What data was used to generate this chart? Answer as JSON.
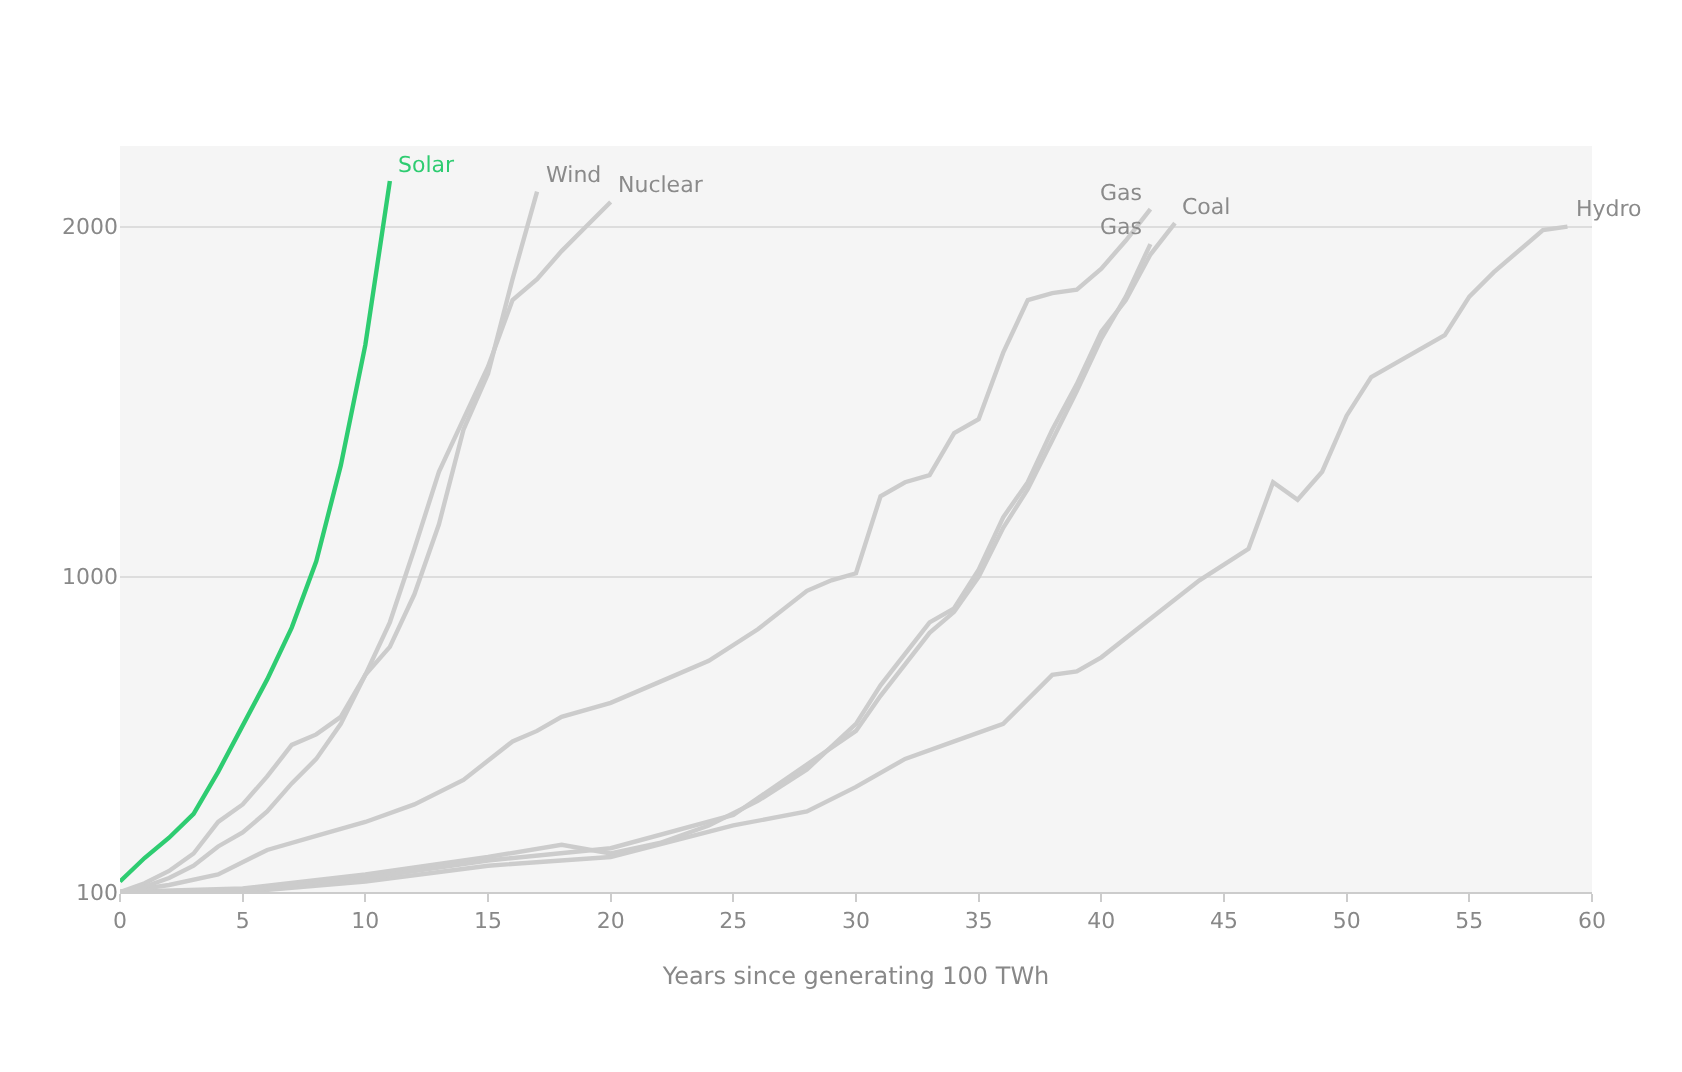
{
  "chart_data": {
    "type": "line",
    "xlabel": "Years since generating 100 TWh",
    "xlim": [
      0,
      60
    ],
    "xticks": [
      0,
      5,
      10,
      15,
      20,
      25,
      30,
      35,
      40,
      45,
      50,
      55,
      60
    ],
    "ylim": [
      100,
      2230
    ],
    "yticks": [
      100,
      1000,
      2000
    ],
    "grid": "y",
    "legend": false,
    "marker": "none",
    "line_style": "solid",
    "series": [
      {
        "name": "Hydro",
        "color": "#cccccc",
        "x": [
          0,
          5,
          10,
          15,
          20,
          25,
          28,
          30,
          32,
          34,
          36,
          38,
          39,
          40,
          42,
          44,
          46,
          47,
          48,
          49,
          50,
          51,
          52,
          54,
          55,
          56,
          58,
          59
        ],
        "values": [
          100,
          100,
          130,
          175,
          200,
          290,
          330,
          400,
          480,
          530,
          580,
          720,
          730,
          770,
          880,
          990,
          1080,
          1270,
          1220,
          1300,
          1460,
          1570,
          1610,
          1690,
          1800,
          1870,
          1990,
          2000
        ]
      },
      {
        "name": "Coal",
        "color": "#cccccc",
        "x": [
          0,
          5,
          10,
          15,
          18,
          20,
          22,
          24,
          26,
          28,
          30,
          31,
          32,
          33,
          34,
          35,
          36,
          37,
          38,
          39,
          40,
          41,
          42,
          43
        ],
        "values": [
          100,
          110,
          150,
          200,
          235,
          210,
          240,
          290,
          360,
          450,
          580,
          690,
          780,
          870,
          910,
          1020,
          1170,
          1270,
          1420,
          1550,
          1700,
          1790,
          1920,
          2010
        ]
      },
      {
        "name": "Gas",
        "color": "#cccccc",
        "x": [
          0,
          5,
          10,
          15,
          20,
          25,
          30,
          31,
          32,
          33,
          34,
          35,
          36,
          37,
          38,
          39,
          40,
          41,
          42
        ],
        "values": [
          100,
          105,
          140,
          190,
          225,
          320,
          560,
          660,
          750,
          840,
          900,
          1000,
          1140,
          1250,
          1390,
          1530,
          1680,
          1800,
          1950
        ]
      },
      {
        "name": "Gas",
        "color": "#cccccc",
        "x": [
          0,
          2,
          4,
          6,
          8,
          10,
          12,
          14,
          16,
          17,
          18,
          20,
          22,
          24,
          26,
          28,
          29,
          30,
          31,
          32,
          33,
          34,
          35,
          36,
          37,
          38,
          39,
          40,
          41,
          42
        ],
        "values": [
          100,
          120,
          150,
          220,
          260,
          300,
          350,
          420,
          530,
          560,
          600,
          640,
          700,
          760,
          850,
          960,
          990,
          1010,
          1230,
          1270,
          1290,
          1410,
          1450,
          1640,
          1790,
          1810,
          1820,
          1880,
          1960,
          2050
        ]
      },
      {
        "name": "Nuclear",
        "color": "#cccccc",
        "x": [
          0,
          1,
          2,
          3,
          4,
          5,
          6,
          7,
          8,
          9,
          10,
          11,
          12,
          13,
          14,
          15,
          16,
          17,
          18,
          19,
          20
        ],
        "values": [
          100,
          125,
          160,
          210,
          300,
          350,
          430,
          520,
          550,
          600,
          720,
          870,
          1080,
          1300,
          1450,
          1600,
          1790,
          1850,
          1930,
          2000,
          2070
        ]
      },
      {
        "name": "Wind",
        "color": "#cccccc",
        "x": [
          0,
          1,
          2,
          3,
          4,
          5,
          6,
          7,
          8,
          9,
          10,
          11,
          12,
          13,
          14,
          15,
          16,
          17
        ],
        "values": [
          100,
          115,
          140,
          175,
          230,
          270,
          330,
          410,
          480,
          580,
          720,
          800,
          950,
          1150,
          1420,
          1580,
          1850,
          2100
        ]
      },
      {
        "name": "Solar",
        "color": "#2ecc71",
        "x": [
          0,
          1,
          2,
          3,
          4,
          5,
          6,
          7,
          8,
          9,
          10,
          11
        ],
        "values": [
          130,
          197,
          255,
          323,
          443,
          575,
          707,
          855,
          1044,
          1318,
          1662,
          2130
        ]
      }
    ]
  }
}
